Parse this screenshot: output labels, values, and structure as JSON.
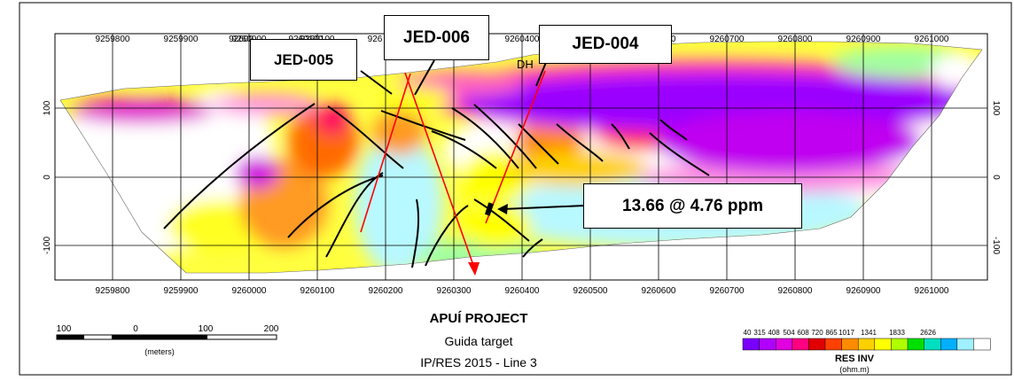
{
  "section": {
    "x_ticks": [
      "9259800",
      "9259900",
      "9260000",
      "9260100",
      "9260200",
      "9260300",
      "9260400",
      "9260500",
      "9260600",
      "9260700",
      "9260800",
      "9260900",
      "9261000"
    ],
    "top_ticks_visible": [
      "9259800",
      "9259900",
      "9260000",
      "9260100",
      "",
      "",
      "9260400",
      "",
      "9260600",
      "9260700",
      "9260800",
      "9260900",
      "9261000"
    ],
    "top_tick_fragments": {
      "a": "92600",
      "b": "9260100",
      "c": "926"
    },
    "y_left_ticks": [
      "100",
      "0",
      "-100"
    ],
    "y_right_ticks": [
      "100",
      "0",
      "-100"
    ],
    "dh_label": "DH"
  },
  "callouts": {
    "jed005": "JED-005",
    "jed006": "JED-006",
    "jed004": "JED-004",
    "intercept": "13.66 @ 4.76 ppm"
  },
  "scale_bar": {
    "ticks": [
      "100",
      "0",
      "100",
      "200"
    ],
    "unit": "(meters)"
  },
  "title_block": {
    "project": "APUÍ PROJECT",
    "target": "Guida target",
    "survey": "IP/RES 2015 - Line 3"
  },
  "legend": {
    "values": [
      "40",
      "315",
      "408",
      "504",
      "608",
      "720",
      "865",
      "1017",
      "1341",
      "1833",
      "2626"
    ],
    "title": "RES INV",
    "unit": "(ohm.m)",
    "colors": [
      "#7a00ff",
      "#b000ff",
      "#e000e0",
      "#ff0080",
      "#e00000",
      "#ff4000",
      "#ff8c00",
      "#ffd000",
      "#ffff00",
      "#b0ff00",
      "#00e000",
      "#00e0c0",
      "#00b0ff",
      "#a0f0ff",
      "#ffffff"
    ]
  },
  "colors": {
    "drillhole": "#ff0000",
    "contact": "#000000",
    "border": "#000000"
  }
}
